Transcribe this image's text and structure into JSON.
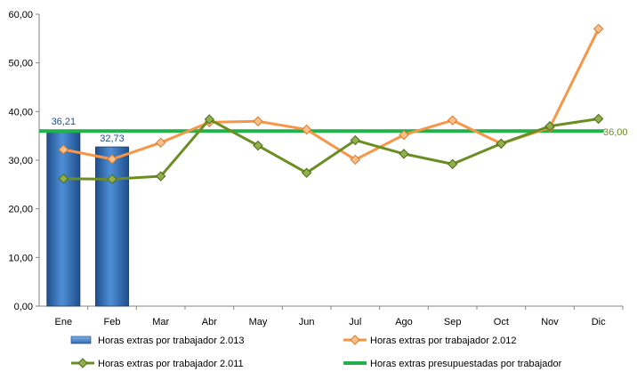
{
  "chart_data": {
    "type": "bar",
    "categories": [
      "Ene",
      "Feb",
      "Mar",
      "Abr",
      "May",
      "Jun",
      "Jul",
      "Ago",
      "Sep",
      "Oct",
      "Nov",
      "Dic"
    ],
    "ylim": [
      0,
      60
    ],
    "yticks": [
      "0,00",
      "10,00",
      "20,00",
      "30,00",
      "40,00",
      "50,00",
      "60,00"
    ],
    "grid": false,
    "legend_position": "bottom",
    "series": [
      {
        "name": "Horas extras por trabajador 2.013",
        "kind": "bar",
        "color": "#2e6db4",
        "values": [
          36.21,
          32.73,
          null,
          null,
          null,
          null,
          null,
          null,
          null,
          null,
          null,
          null
        ],
        "labels": [
          "36,21",
          "32,73",
          null,
          null,
          null,
          null,
          null,
          null,
          null,
          null,
          null,
          null
        ]
      },
      {
        "name": "Horas extras por trabajador 2.012",
        "kind": "line",
        "marker": "diamond",
        "color": "#f79646",
        "values": [
          32.2,
          30.2,
          33.6,
          37.8,
          38.0,
          36.3,
          30.1,
          35.2,
          38.2,
          33.4,
          36.7,
          57.0
        ]
      },
      {
        "name": "Horas extras por trabajador 2.011",
        "kind": "line",
        "marker": "diamond",
        "color": "#6b8e23",
        "values": [
          26.2,
          26.1,
          26.7,
          38.4,
          33.0,
          27.4,
          34.1,
          31.3,
          29.2,
          33.4,
          37.0,
          38.5
        ]
      },
      {
        "name": "Horas extras presupuestadas por trabajador",
        "kind": "line",
        "color": "#22b14c",
        "values": [
          36,
          36,
          36,
          36,
          36,
          36,
          36,
          36,
          36,
          36,
          36,
          36
        ],
        "end_label": "36,00"
      }
    ]
  }
}
